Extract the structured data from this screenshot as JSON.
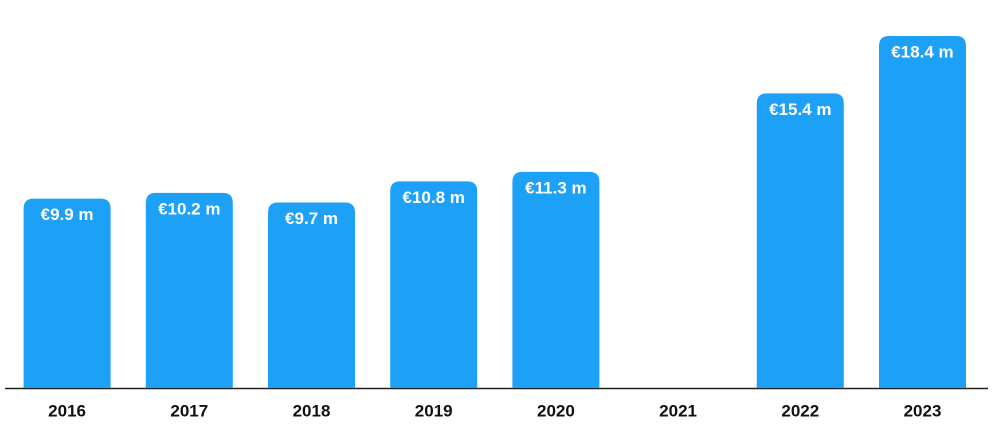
{
  "chart_data": {
    "type": "bar",
    "categories": [
      "2016",
      "2017",
      "2018",
      "2019",
      "2020",
      "2021",
      "2022",
      "2023"
    ],
    "values": [
      9.9,
      10.2,
      9.7,
      10.8,
      11.3,
      null,
      15.4,
      18.4
    ],
    "value_labels": [
      "€9.9 m",
      "€10.2 m",
      "€9.7 m",
      "€10.8 m",
      "€11.3 m",
      null,
      "€15.4 m",
      "€18.4 m"
    ],
    "color": "#1da1f7"
  }
}
